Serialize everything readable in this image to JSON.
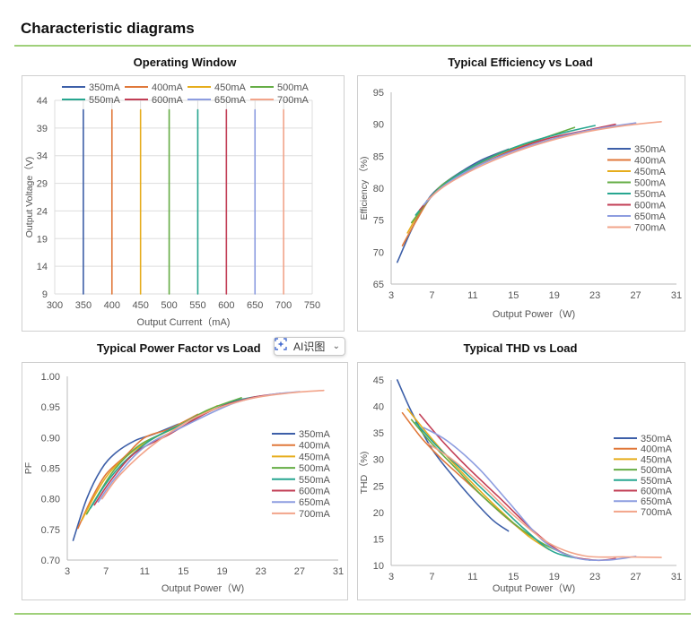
{
  "page": {
    "title": "Characteristic diagrams"
  },
  "ai_chip": {
    "label": "AI识图",
    "icon": "ai-scan-icon",
    "chevron": "⌄"
  },
  "chart_data": [
    {
      "id": "operating-window",
      "type": "line",
      "title": "Operating Window",
      "xlabel": "Output Current（mA)",
      "ylabel": "Output Voltage（V)",
      "xlim": [
        300,
        750
      ],
      "ylim": [
        9,
        44
      ],
      "xticks": [
        300,
        350,
        400,
        450,
        500,
        550,
        600,
        650,
        700,
        750
      ],
      "yticks": [
        9,
        14,
        19,
        24,
        29,
        34,
        39,
        44
      ],
      "grid": true,
      "legend": "top",
      "series": [
        {
          "name": "350mA",
          "color": "#3d5fa8",
          "points": [
            [
              350,
              9
            ],
            [
              350,
              42.3
            ]
          ]
        },
        {
          "name": "400mA",
          "color": "#e0783a",
          "points": [
            [
              400,
              9
            ],
            [
              400,
              42.3
            ]
          ]
        },
        {
          "name": "450mA",
          "color": "#e6ad1c",
          "points": [
            [
              450,
              9
            ],
            [
              450,
              42.3
            ]
          ]
        },
        {
          "name": "500mA",
          "color": "#65ad45",
          "points": [
            [
              500,
              9
            ],
            [
              500,
              42.3
            ]
          ]
        },
        {
          "name": "550mA",
          "color": "#27a690",
          "points": [
            [
              550,
              9
            ],
            [
              550,
              42.3
            ]
          ]
        },
        {
          "name": "600mA",
          "color": "#c23e55",
          "points": [
            [
              600,
              9
            ],
            [
              600,
              42.3
            ]
          ]
        },
        {
          "name": "650mA",
          "color": "#8d9de0",
          "points": [
            [
              650,
              9
            ],
            [
              650,
              42.3
            ]
          ]
        },
        {
          "name": "700mA",
          "color": "#f2a48a",
          "points": [
            [
              700,
              9
            ],
            [
              700,
              42.3
            ]
          ]
        }
      ]
    },
    {
      "id": "efficiency",
      "type": "line",
      "title": "Typical Efficiency vs Load",
      "xlabel": "Output Power（W)",
      "ylabel": "Efficiency （%)",
      "xlim": [
        3,
        31
      ],
      "ylim": [
        65,
        95
      ],
      "xticks": [
        3,
        7,
        11,
        15,
        19,
        23,
        27,
        31
      ],
      "yticks": [
        65,
        70,
        75,
        80,
        85,
        90,
        95
      ],
      "grid": false,
      "legend": "right",
      "series": [
        {
          "name": "350mA",
          "color": "#3d5fa8",
          "points": [
            [
              3.6,
              68.4
            ],
            [
              5,
              73.5
            ],
            [
              6.5,
              78
            ],
            [
              8,
              80.5
            ],
            [
              10,
              82.7
            ],
            [
              12,
              84.5
            ],
            [
              14.5,
              86.1
            ]
          ]
        },
        {
          "name": "400mA",
          "color": "#e0783a",
          "points": [
            [
              4.1,
              71
            ],
            [
              5.5,
              75
            ],
            [
              7,
              78.8
            ],
            [
              9,
              81.5
            ],
            [
              11,
              83.4
            ],
            [
              13.5,
              85.3
            ],
            [
              16.5,
              86.8
            ]
          ]
        },
        {
          "name": "450mA",
          "color": "#e6ad1c",
          "points": [
            [
              4.6,
              73
            ],
            [
              6,
              76.8
            ],
            [
              7.5,
              79.6
            ],
            [
              10,
              82.4
            ],
            [
              13,
              84.9
            ],
            [
              16,
              86.7
            ],
            [
              18.5,
              87.8
            ]
          ]
        },
        {
          "name": "500mA",
          "color": "#65ad45",
          "points": [
            [
              5,
              74.6
            ],
            [
              6.5,
              77.8
            ],
            [
              8,
              80.5
            ],
            [
              10.5,
              83
            ],
            [
              14,
              85.7
            ],
            [
              17.5,
              87.6
            ],
            [
              21,
              89.5
            ]
          ]
        },
        {
          "name": "550mA",
          "color": "#27a690",
          "points": [
            [
              5.4,
              75.8
            ],
            [
              7,
              78.8
            ],
            [
              9,
              81.5
            ],
            [
              12,
              84.2
            ],
            [
              16,
              86.9
            ],
            [
              20,
              88.7
            ],
            [
              23,
              89.8
            ]
          ]
        },
        {
          "name": "600mA",
          "color": "#c23e55",
          "points": [
            [
              5.8,
              76.6
            ],
            [
              7.5,
              79.5
            ],
            [
              10,
              82.2
            ],
            [
              13.5,
              85
            ],
            [
              18,
              87.6
            ],
            [
              22,
              89
            ],
            [
              25,
              90
            ]
          ]
        },
        {
          "name": "650mA",
          "color": "#8d9de0",
          "points": [
            [
              6.2,
              77.4
            ],
            [
              8,
              80.2
            ],
            [
              11,
              83.1
            ],
            [
              15,
              85.8
            ],
            [
              20,
              88.2
            ],
            [
              24,
              89.5
            ],
            [
              27,
              90.2
            ]
          ]
        },
        {
          "name": "700mA",
          "color": "#f2a48a",
          "points": [
            [
              6.6,
              78.2
            ],
            [
              8.5,
              80.6
            ],
            [
              12,
              83.6
            ],
            [
              16.5,
              86.4
            ],
            [
              21.5,
              88.6
            ],
            [
              26,
              89.8
            ],
            [
              29.5,
              90.4
            ]
          ]
        }
      ]
    },
    {
      "id": "power-factor",
      "type": "line",
      "title": "Typical Power Factor vs Load",
      "xlabel": "Output Power（W)",
      "ylabel": "PF",
      "xlim": [
        3,
        31
      ],
      "ylim": [
        0.7,
        1.0
      ],
      "xticks": [
        3,
        7,
        11,
        15,
        19,
        23,
        27,
        31
      ],
      "yticks": [
        0.7,
        0.75,
        0.8,
        0.85,
        0.9,
        0.95,
        1.0
      ],
      "ytick_labels": [
        "0.70",
        "0.75",
        "0.80",
        "0.85",
        "0.90",
        "0.95",
        "1.00"
      ],
      "grid": false,
      "legend": "right",
      "series": [
        {
          "name": "350mA",
          "color": "#3d5fa8",
          "points": [
            [
              3.6,
              0.732
            ],
            [
              5,
              0.8
            ],
            [
              6.5,
              0.848
            ],
            [
              8,
              0.875
            ],
            [
              10,
              0.895
            ],
            [
              12,
              0.906
            ],
            [
              14.5,
              0.922
            ]
          ]
        },
        {
          "name": "400mA",
          "color": "#e0783a",
          "points": [
            [
              4.1,
              0.752
            ],
            [
              5.5,
              0.8
            ],
            [
              7,
              0.84
            ],
            [
              9,
              0.87
            ],
            [
              11,
              0.9
            ],
            [
              13.5,
              0.914
            ],
            [
              16.5,
              0.938
            ]
          ]
        },
        {
          "name": "450mA",
          "color": "#e6ad1c",
          "points": [
            [
              4.5,
              0.765
            ],
            [
              6,
              0.81
            ],
            [
              7.5,
              0.845
            ],
            [
              10,
              0.88
            ],
            [
              13,
              0.908
            ],
            [
              16,
              0.932
            ],
            [
              18.5,
              0.952
            ]
          ]
        },
        {
          "name": "500mA",
          "color": "#65ad45",
          "points": [
            [
              5,
              0.775
            ],
            [
              6.5,
              0.815
            ],
            [
              8,
              0.85
            ],
            [
              10.5,
              0.888
            ],
            [
              14,
              0.915
            ],
            [
              17.5,
              0.945
            ],
            [
              21,
              0.965
            ]
          ]
        },
        {
          "name": "550mA",
          "color": "#27a690",
          "points": [
            [
              5.4,
              0.785
            ],
            [
              7,
              0.825
            ],
            [
              9,
              0.862
            ],
            [
              12,
              0.9
            ],
            [
              16,
              0.93
            ],
            [
              20,
              0.958
            ],
            [
              23,
              0.968
            ]
          ]
        },
        {
          "name": "600mA",
          "color": "#c23e55",
          "points": [
            [
              5.8,
              0.79
            ],
            [
              7.5,
              0.83
            ],
            [
              10,
              0.875
            ],
            [
              13.5,
              0.905
            ],
            [
              18,
              0.945
            ],
            [
              22,
              0.965
            ],
            [
              25,
              0.972
            ]
          ]
        },
        {
          "name": "650mA",
          "color": "#8d9de0",
          "points": [
            [
              6.2,
              0.795
            ],
            [
              8,
              0.835
            ],
            [
              11,
              0.885
            ],
            [
              15,
              0.918
            ],
            [
              20,
              0.955
            ],
            [
              24,
              0.97
            ],
            [
              27,
              0.975
            ]
          ]
        },
        {
          "name": "700mA",
          "color": "#f2a48a",
          "points": [
            [
              6.6,
              0.8
            ],
            [
              8.5,
              0.84
            ],
            [
              12,
              0.89
            ],
            [
              16.5,
              0.935
            ],
            [
              21.5,
              0.962
            ],
            [
              26,
              0.973
            ],
            [
              29.5,
              0.977
            ]
          ]
        }
      ]
    },
    {
      "id": "thd",
      "type": "line",
      "title": "Typical THD vs Load",
      "xlabel": "Output Power（W)",
      "ylabel": "THD （%)",
      "xlim": [
        3,
        31
      ],
      "ylim": [
        10,
        45
      ],
      "xticks": [
        3,
        7,
        11,
        15,
        19,
        23,
        27,
        31
      ],
      "yticks": [
        10,
        15,
        20,
        25,
        30,
        35,
        40,
        45
      ],
      "grid": false,
      "legend": "right",
      "series": [
        {
          "name": "350mA",
          "color": "#3d5fa8",
          "points": [
            [
              3.6,
              45
            ],
            [
              5,
              39
            ],
            [
              7,
              32
            ],
            [
              9,
              27
            ],
            [
              11,
              22.5
            ],
            [
              13,
              18.5
            ],
            [
              14.5,
              16.5
            ]
          ]
        },
        {
          "name": "400mA",
          "color": "#e0783a",
          "points": [
            [
              4.1,
              38.8
            ],
            [
              6,
              34
            ],
            [
              8,
              30
            ],
            [
              10,
              26.5
            ],
            [
              12,
              23
            ],
            [
              14,
              19.5
            ],
            [
              16.5,
              15.5
            ]
          ]
        },
        {
          "name": "450mA",
          "color": "#e6ad1c",
          "points": [
            [
              4.6,
              39.5
            ],
            [
              6.5,
              35
            ],
            [
              9,
              29.5
            ],
            [
              11.5,
              24.5
            ],
            [
              14,
              19.8
            ],
            [
              16.5,
              15.5
            ],
            [
              18.5,
              13
            ]
          ]
        },
        {
          "name": "500mA",
          "color": "#65ad45",
          "points": [
            [
              5,
              37.5
            ],
            [
              7,
              33
            ],
            [
              9.5,
              28
            ],
            [
              12,
              23
            ],
            [
              15,
              18
            ],
            [
              18,
              14
            ],
            [
              21,
              11.5
            ]
          ]
        },
        {
          "name": "550mA",
          "color": "#27a690",
          "points": [
            [
              5.4,
              37
            ],
            [
              7.5,
              32.5
            ],
            [
              10,
              28
            ],
            [
              13,
              22.5
            ],
            [
              16,
              17
            ],
            [
              19,
              12.5
            ],
            [
              22.5,
              11
            ]
          ]
        },
        {
          "name": "600mA",
          "color": "#c23e55",
          "points": [
            [
              5.8,
              38.5
            ],
            [
              8,
              33.5
            ],
            [
              10.5,
              28.5
            ],
            [
              13.5,
              23
            ],
            [
              17,
              16.5
            ],
            [
              20,
              12.2
            ],
            [
              23,
              11
            ],
            [
              25,
              11.3
            ]
          ]
        },
        {
          "name": "650mA",
          "color": "#8d9de0",
          "points": [
            [
              6.2,
              36
            ],
            [
              8.5,
              33.5
            ],
            [
              11.5,
              28.5
            ],
            [
              14.5,
              22
            ],
            [
              18,
              14.5
            ],
            [
              21,
              11.5
            ],
            [
              24,
              11
            ],
            [
              27,
              11.7
            ]
          ]
        },
        {
          "name": "700mA",
          "color": "#f2a48a",
          "points": [
            [
              6.6,
              33
            ],
            [
              9,
              30
            ],
            [
              12,
              25
            ],
            [
              15,
              19.5
            ],
            [
              18.5,
              14.2
            ],
            [
              22,
              11.8
            ],
            [
              26,
              11.6
            ],
            [
              29.5,
              11.5
            ]
          ]
        }
      ]
    }
  ]
}
